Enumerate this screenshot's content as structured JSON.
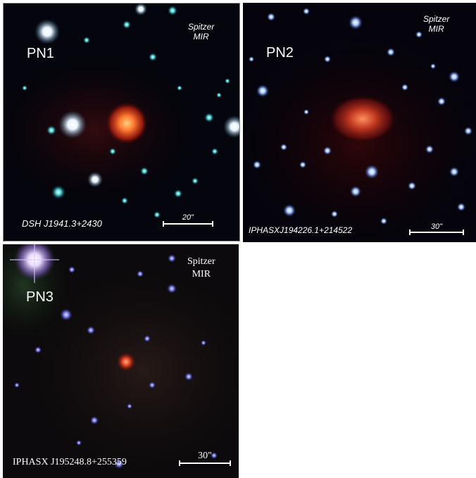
{
  "panels": [
    {
      "object_label": "PN1",
      "instrument_line1": "Spitzer",
      "instrument_line2": "MIR",
      "source_name": "DSH J1941.3+2430",
      "scale_label": "20\""
    },
    {
      "object_label": "PN2",
      "instrument_line1": "Spitzer",
      "instrument_line2": "MIR",
      "source_name": "IPHASXJ194226.1+214522",
      "scale_label": "30\""
    },
    {
      "object_label": "PN3",
      "instrument_line1": "Spitzer",
      "instrument_line2": "MIR",
      "source_name": "IPHASX J195248.8+255359",
      "scale_label": "30\""
    }
  ]
}
